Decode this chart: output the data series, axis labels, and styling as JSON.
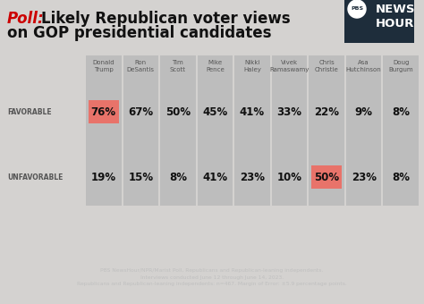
{
  "title_poll": "Poll:",
  "title_main": " Likely Republican voter views\non GOP presidential candidates",
  "candidates": [
    "Donald\nTrump",
    "Ron\nDeSantis",
    "Tim\nScott",
    "Mike\nPence",
    "Nikki\nHaley",
    "Vivek\nRamaswamy",
    "Chris\nChristie",
    "Asa\nHutchinson",
    "Doug\nBurgum"
  ],
  "favorable": [
    76,
    67,
    50,
    45,
    41,
    33,
    22,
    9,
    8
  ],
  "unfavorable": [
    19,
    15,
    8,
    41,
    23,
    10,
    50,
    23,
    8
  ],
  "favorable_highlight": [
    0
  ],
  "unfavorable_highlight": [
    6
  ],
  "bg_color": "#d4d2d0",
  "col_color": "#bdbdbd",
  "highlight_color": "#e8736a",
  "title_red": "#cc0000",
  "title_black": "#111111",
  "footer_bg": "#1e2d3b",
  "footer_text": "PBS NewsHour/NPR/Marist Poll, Republicans and Republican-leaning independents.\nInterviews conducted June 12 through June 14, 2023.\nRepublicans and Republican-leaning independents: n=467. Margin of Error: ±5.9 percentage points.",
  "footer_color": "#c0c0c0",
  "label_favorable": "FAVORABLE",
  "label_unfavorable": "UNFAVORABLE",
  "pbs_box_color": "#1e2d3b",
  "pbs_text_news": "NEWS",
  "pbs_text_hour": "HOUR",
  "pbs_text_pbs": "PBS"
}
